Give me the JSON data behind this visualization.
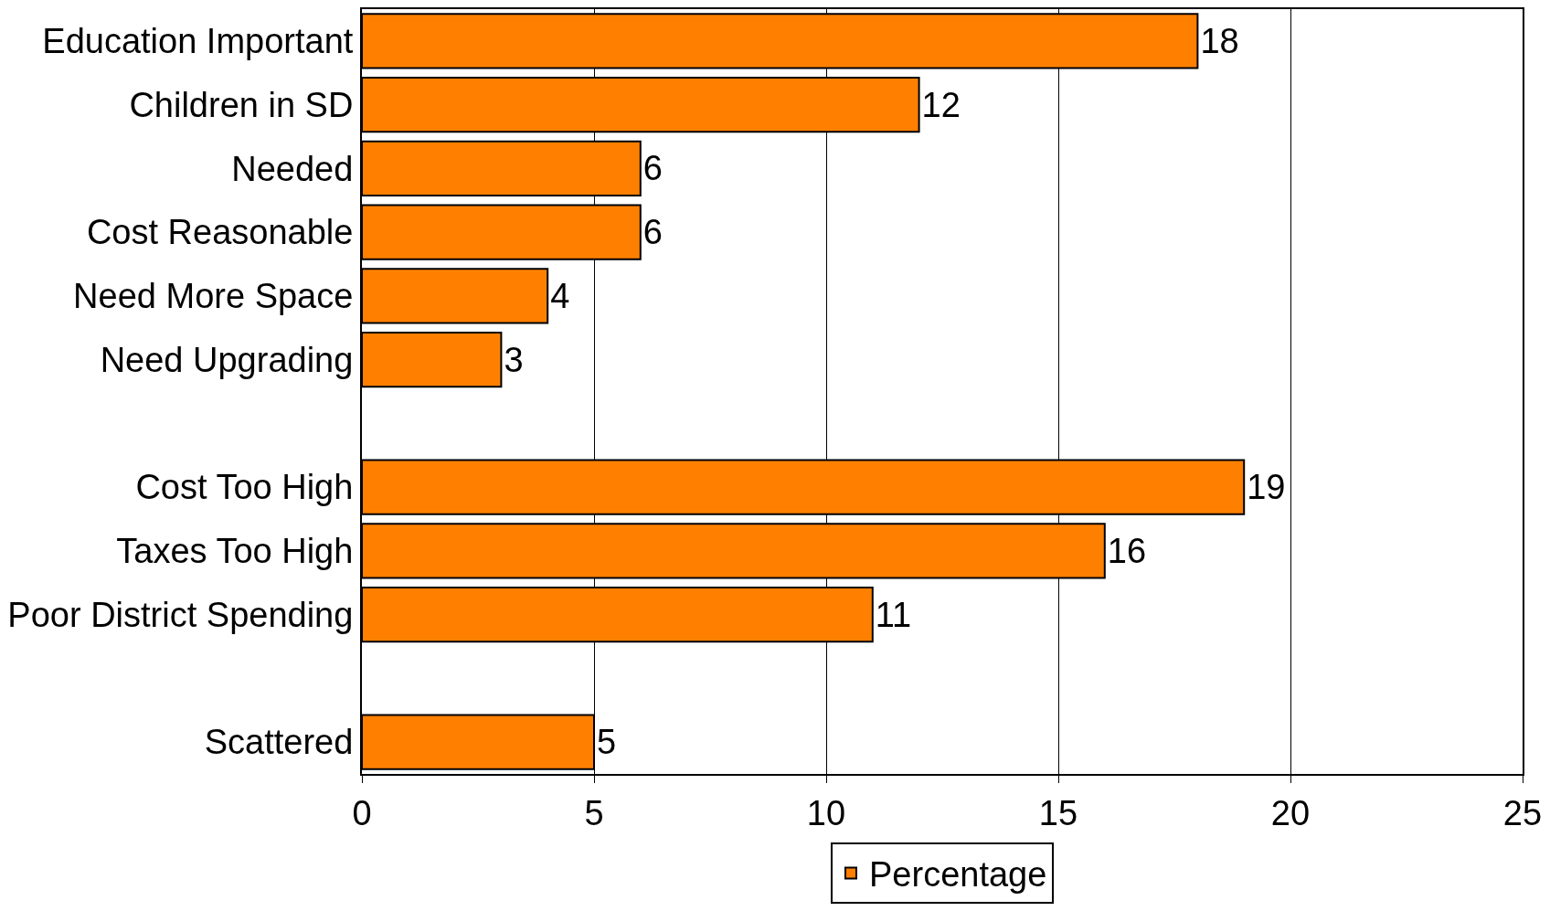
{
  "chart_data": {
    "type": "bar",
    "orientation": "horizontal",
    "categories": [
      "Education Important",
      "Children in SD",
      "Needed",
      "Cost Reasonable",
      "Need More Space",
      "Need Upgrading",
      null,
      "Cost Too High",
      "Taxes Too High",
      "Poor District Spending",
      null,
      "Scattered"
    ],
    "series": [
      {
        "name": "Percentage",
        "color": "#ff8000",
        "values": [
          18,
          12,
          6,
          6,
          4,
          3,
          null,
          19,
          16,
          11,
          null,
          5
        ]
      }
    ],
    "xlim": [
      0,
      25
    ],
    "xticks": [
      0,
      5,
      10,
      15,
      20,
      25
    ],
    "grid": "x",
    "legend": "bottom",
    "data_labels": true
  }
}
